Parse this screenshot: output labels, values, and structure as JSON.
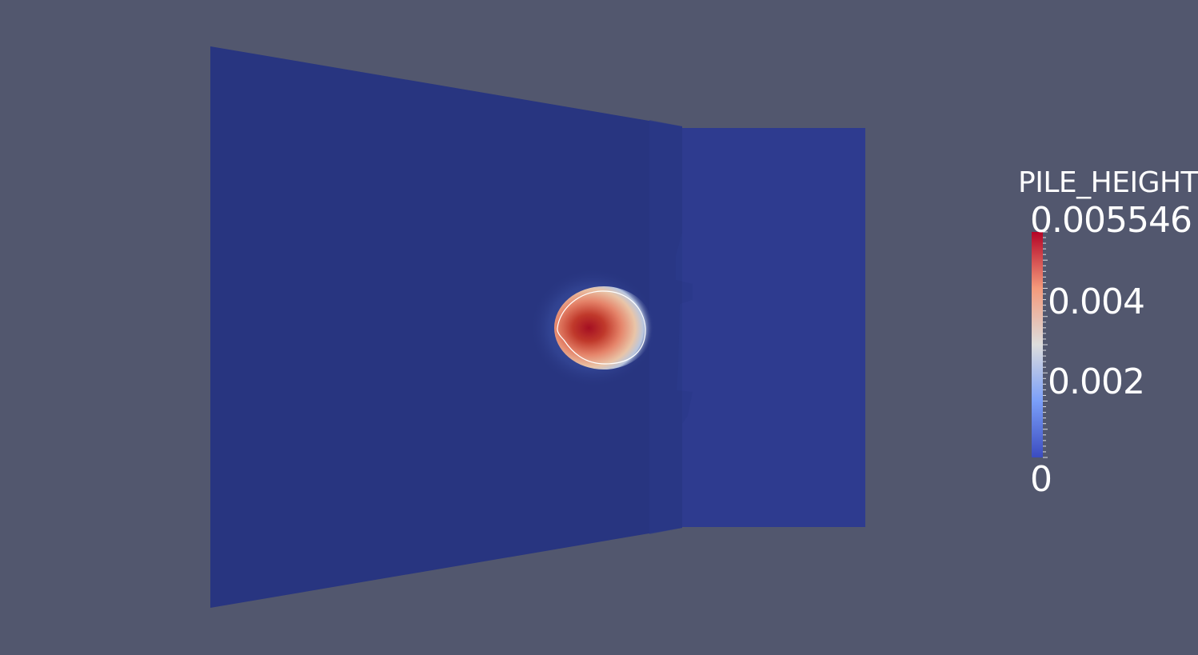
{
  "scalar_bar": {
    "title": "PILE_HEIGHT",
    "max_label": "0.005546",
    "min_label": "0",
    "tick_labels": [
      "0.004",
      "0.002"
    ],
    "range": [
      0,
      0.005546
    ],
    "tick_values": [
      0.004,
      0.002
    ],
    "colormap": "cool-to-warm",
    "colors": {
      "low": "#3b4cc0",
      "mid": "#dddddd",
      "high": "#b40426"
    }
  },
  "render": {
    "background_color": "#52576e",
    "surface_color": "#283580",
    "surface_color_light": "#2e3b8f",
    "contour_color": "#ffffff"
  }
}
